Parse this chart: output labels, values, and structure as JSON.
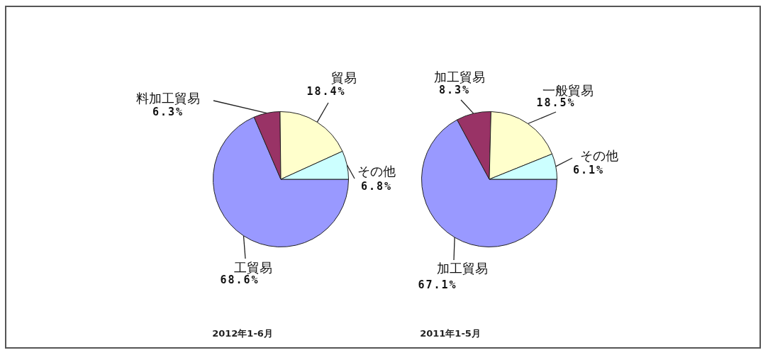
{
  "chart_data": [
    {
      "type": "pie",
      "title": "2012年1-6月",
      "categories": [
        "工貿易",
        "料加工貿易",
        "貿易",
        "その他"
      ],
      "values": [
        68.6,
        6.3,
        18.4,
        6.8
      ],
      "colors": [
        "#9999ff",
        "#993366",
        "#ffffcc",
        "#ccffff"
      ],
      "value_labels": [
        "68.6%",
        "6.3%",
        "18.4%",
        "6.8%"
      ]
    },
    {
      "type": "pie",
      "title": "2011年1-5月",
      "categories": [
        "加工貿易",
        "加工貿易",
        "一般貿易",
        "その他"
      ],
      "values": [
        67.1,
        8.3,
        18.5,
        6.1
      ],
      "colors": [
        "#9999ff",
        "#993366",
        "#ffffcc",
        "#ccffff"
      ],
      "value_labels": [
        "67.1%",
        "8.3%",
        "18.5%",
        "6.1%"
      ]
    }
  ]
}
